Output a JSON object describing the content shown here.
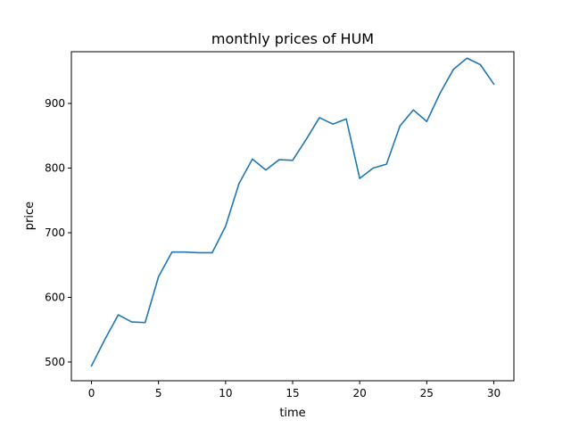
{
  "chart_data": {
    "type": "line",
    "title": "monthly prices of HUM",
    "xlabel": "time",
    "ylabel": "price",
    "xlim": [
      -1.5,
      31.5
    ],
    "ylim": [
      471,
      980
    ],
    "xticks": [
      0,
      5,
      10,
      15,
      20,
      25,
      30
    ],
    "yticks": [
      500,
      600,
      700,
      800,
      900
    ],
    "grid": false,
    "series": [
      {
        "color": "#1f77b4",
        "x": [
          0,
          1,
          2,
          3,
          4,
          5,
          6,
          7,
          8,
          9,
          10,
          11,
          12,
          13,
          14,
          15,
          16,
          17,
          18,
          19,
          20,
          21,
          22,
          23,
          24,
          25,
          26,
          27,
          28,
          29,
          30
        ],
        "y": [
          494,
          535,
          573,
          562,
          561,
          632,
          670,
          670,
          669,
          669,
          710,
          776,
          814,
          797,
          813,
          812,
          844,
          878,
          868,
          876,
          784,
          800,
          806,
          865,
          890,
          872,
          916,
          953,
          970,
          960,
          930
        ]
      }
    ]
  }
}
